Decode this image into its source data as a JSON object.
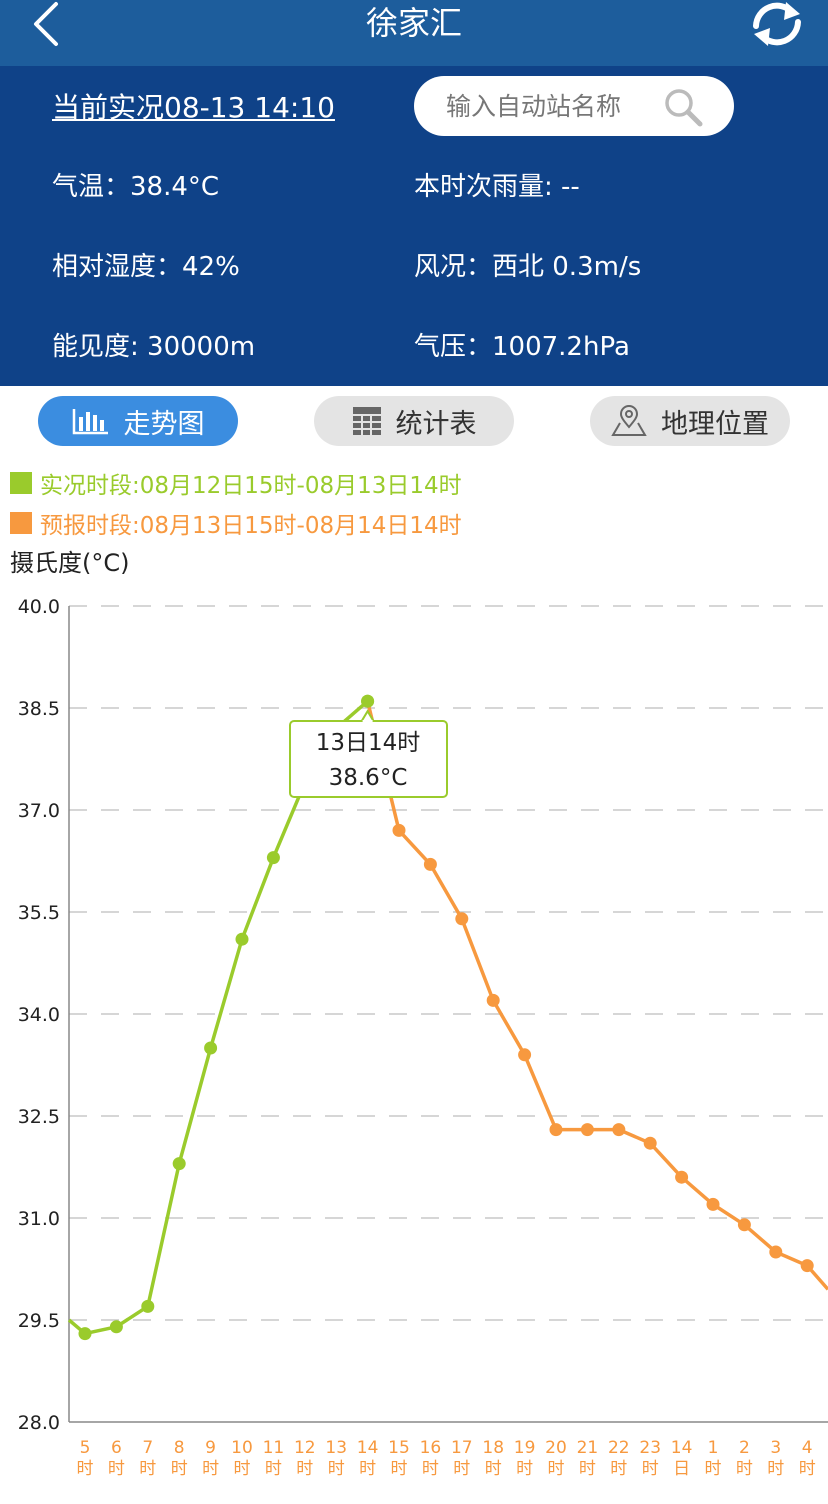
{
  "header": {
    "title": "徐家汇"
  },
  "observation": {
    "title": "当前实况08-13 14:10",
    "temperature": "气温：38.4°C",
    "rainfall": "本时次雨量: --",
    "humidity": "相对湿度：42%",
    "wind": "风况：西北 0.3m/s",
    "visibility": "能见度: 30000m",
    "pressure": "气压：1007.2hPa"
  },
  "search": {
    "placeholder": "输入自动站名称"
  },
  "tabs": [
    {
      "label": "走势图",
      "icon": "bar-chart-icon",
      "active": true
    },
    {
      "label": "统计表",
      "icon": "table-icon",
      "active": false
    },
    {
      "label": "地理位置",
      "icon": "map-pin-icon",
      "active": false
    }
  ],
  "colors": {
    "observed": "#9acb2c",
    "forecast": "#f7993f",
    "header": "#1d5d9c",
    "panel": "#0f4288",
    "active_tab": "#3b8de0"
  },
  "chart_data": {
    "type": "line",
    "ylabel": "摄氏度(°C)",
    "ylim": [
      28.0,
      40.0
    ],
    "yticks": [
      "40.0",
      "38.5",
      "37.0",
      "35.5",
      "34.0",
      "32.5",
      "31.0",
      "29.5",
      "28.0"
    ],
    "categories": [
      [
        "5",
        "时"
      ],
      [
        "6",
        "时"
      ],
      [
        "7",
        "时"
      ],
      [
        "8",
        "时"
      ],
      [
        "9",
        "时"
      ],
      [
        "10",
        "时"
      ],
      [
        "11",
        "时"
      ],
      [
        "12",
        "时"
      ],
      [
        "13",
        "时"
      ],
      [
        "14",
        "时"
      ],
      [
        "15",
        "时"
      ],
      [
        "16",
        "时"
      ],
      [
        "17",
        "时"
      ],
      [
        "18",
        "时"
      ],
      [
        "19",
        "时"
      ],
      [
        "20",
        "时"
      ],
      [
        "21",
        "时"
      ],
      [
        "22",
        "时"
      ],
      [
        "23",
        "时"
      ],
      [
        "14",
        "日"
      ],
      [
        "1",
        "时"
      ],
      [
        "2",
        "时"
      ],
      [
        "3",
        "时"
      ],
      [
        "4",
        "时"
      ]
    ],
    "series": [
      {
        "name": "实况时段:08月12日15时-08月13日14时",
        "color": "#9acb2c",
        "values": [
          29.3,
          29.4,
          29.7,
          31.8,
          33.5,
          35.1,
          36.3,
          37.4,
          38.2,
          38.6,
          null,
          null,
          null,
          null,
          null,
          null,
          null,
          null,
          null,
          null,
          null,
          null,
          null,
          null
        ]
      },
      {
        "name": "预报时段:08月13日15时-08月14日14时",
        "color": "#f7993f",
        "values": [
          null,
          null,
          null,
          null,
          null,
          null,
          null,
          null,
          null,
          38.6,
          36.7,
          36.2,
          35.4,
          34.2,
          33.4,
          32.3,
          32.3,
          32.3,
          32.1,
          31.6,
          31.2,
          30.9,
          30.5,
          30.3
        ]
      }
    ],
    "tooltip": {
      "line1": "13日14时",
      "line2": "38.6°C",
      "index": 9
    },
    "grid": true
  }
}
